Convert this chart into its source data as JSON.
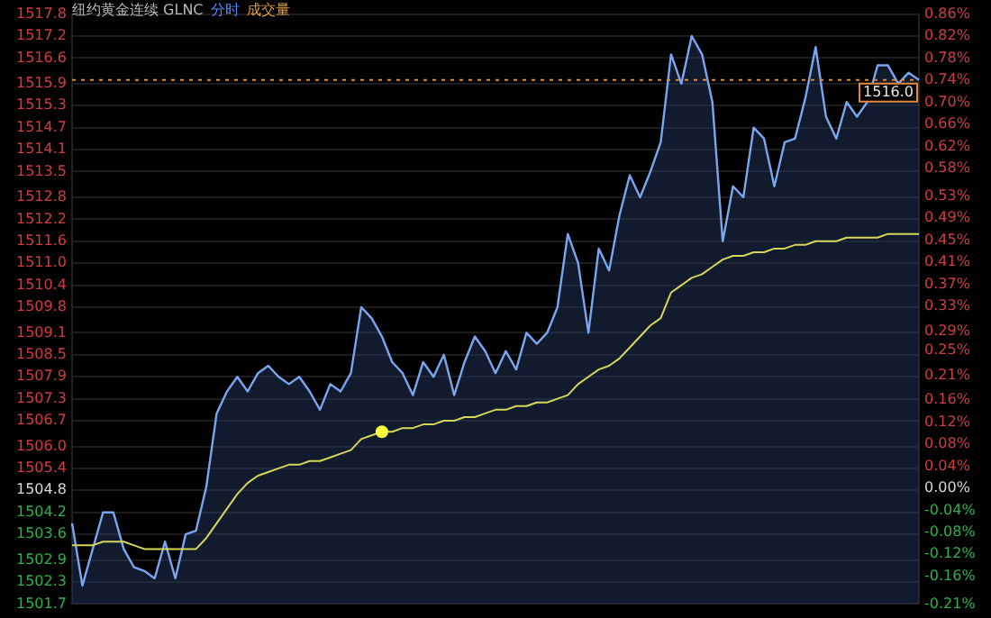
{
  "chart_data": {
    "type": "area",
    "title": "纽约黄金连续 GLNC",
    "annotations": [
      "分时",
      "成交量"
    ],
    "categories": [
      null,
      null,
      null,
      null,
      null,
      null,
      null,
      null,
      null,
      null,
      null,
      null,
      null,
      null,
      null,
      null,
      null,
      null,
      null,
      null,
      null,
      null,
      null,
      null,
      null,
      null,
      null,
      null,
      null,
      null,
      null,
      null,
      null,
      null,
      null,
      null,
      null,
      null,
      null,
      null,
      null,
      null,
      null,
      null,
      null,
      null,
      null,
      null,
      null,
      null,
      null,
      null,
      null,
      null,
      null,
      null,
      null,
      null,
      null,
      null,
      null,
      null,
      null,
      null,
      null,
      null,
      null,
      null,
      null,
      null,
      null,
      null,
      null,
      null,
      null,
      null,
      null,
      null,
      null,
      null,
      null,
      null,
      null
    ],
    "series": [
      {
        "type": "area",
        "color": "#7aa6f0",
        "values": [
          1503.9,
          1502.2,
          1503.2,
          1504.2,
          1504.2,
          1503.2,
          1502.7,
          1502.6,
          1502.4,
          1503.4,
          1502.4,
          1503.6,
          1503.7,
          1504.9,
          1506.9,
          1507.5,
          1507.9,
          1507.5,
          1508.0,
          1508.2,
          1507.9,
          1507.7,
          1507.9,
          1507.5,
          1507.0,
          1507.7,
          1507.5,
          1508.0,
          1509.8,
          1509.5,
          1509.0,
          1508.3,
          1508.0,
          1507.4,
          1508.3,
          1507.9,
          1508.5,
          1507.4,
          1508.3,
          1509.0,
          1508.6,
          1508.0,
          1508.6,
          1508.1,
          1509.1,
          1508.8,
          1509.1,
          1509.8,
          1511.8,
          1511.0,
          1509.1,
          1511.4,
          1510.8,
          1512.3,
          1513.4,
          1512.8,
          1513.5,
          1514.3,
          1516.7,
          1515.9,
          1517.2,
          1516.7,
          1515.4,
          1511.6,
          1513.1,
          1512.8,
          1514.7,
          1514.4,
          1513.1,
          1514.3,
          1514.4,
          1515.5,
          1516.9,
          1515.0,
          1514.4,
          1515.4,
          1515.0,
          1515.4,
          1516.4,
          1516.4,
          1515.9,
          1516.2,
          1516.0
        ]
      },
      {
        "type": "line",
        "color": "#d6d65a",
        "values": [
          1503.3,
          1503.3,
          1503.3,
          1503.4,
          1503.4,
          1503.4,
          1503.3,
          1503.2,
          1503.2,
          1503.2,
          1503.2,
          1503.2,
          1503.2,
          1503.5,
          1503.9,
          1504.3,
          1504.7,
          1505.0,
          1505.2,
          1505.3,
          1505.4,
          1505.5,
          1505.5,
          1505.6,
          1505.6,
          1505.7,
          1505.8,
          1505.9,
          1506.2,
          1506.3,
          1506.4,
          1506.4,
          1506.5,
          1506.5,
          1506.6,
          1506.6,
          1506.7,
          1506.7,
          1506.8,
          1506.8,
          1506.9,
          1507.0,
          1507.0,
          1507.1,
          1507.1,
          1507.2,
          1507.2,
          1507.3,
          1507.4,
          1507.7,
          1507.9,
          1508.1,
          1508.2,
          1508.4,
          1508.7,
          1509.0,
          1509.3,
          1509.5,
          1510.2,
          1510.4,
          1510.6,
          1510.7,
          1510.9,
          1511.1,
          1511.2,
          1511.2,
          1511.3,
          1511.3,
          1511.4,
          1511.4,
          1511.5,
          1511.5,
          1511.6,
          1511.6,
          1511.6,
          1511.7,
          1511.7,
          1511.7,
          1511.7,
          1511.8,
          1511.8,
          1511.8,
          1511.8
        ]
      },
      {
        "type": "scatter",
        "color": "#ffff40",
        "marker": "circle",
        "values": [
          null,
          null,
          null,
          null,
          null,
          null,
          null,
          null,
          null,
          null,
          null,
          null,
          null,
          null,
          null,
          null,
          null,
          null,
          null,
          null,
          null,
          null,
          null,
          null,
          null,
          null,
          null,
          null,
          null,
          null,
          1506.4,
          null,
          null,
          null,
          null,
          null,
          null,
          null,
          null,
          null,
          null,
          null,
          null,
          null,
          null,
          null,
          null,
          null,
          null,
          null,
          null,
          null,
          null,
          null,
          null,
          null,
          null,
          null,
          null,
          null,
          null,
          null,
          null,
          null,
          null,
          null,
          null,
          null,
          null,
          null,
          null,
          null,
          null,
          null,
          null,
          null,
          null,
          null,
          null,
          null,
          null,
          null,
          null
        ]
      }
    ],
    "ylim": [
      1501.7,
      1517.8
    ],
    "yticks": [
      1517.8,
      1517.2,
      1516.6,
      1515.9,
      1515.3,
      1514.7,
      1514.1,
      1513.5,
      1512.8,
      1512.2,
      1511.6,
      {
        "value": 1511.0,
        "label": "1511.0"
      },
      1510.4,
      1509.8,
      1509.1,
      1508.5,
      1507.9,
      1507.3,
      1506.7,
      {
        "value": 1506.0,
        "label": "1506.0"
      },
      1505.4,
      1504.8,
      1504.2,
      1503.6,
      1502.9,
      1502.3,
      1501.7
    ],
    "y2lim": [
      -0.21,
      0.86
    ],
    "y2ticks": [
      {
        "value": 0.86,
        "label": "0.86%"
      },
      {
        "value": 0.82,
        "label": "0.82%"
      },
      {
        "value": 0.78,
        "label": "0.78%"
      },
      {
        "value": 0.74,
        "label": "0.74%"
      },
      {
        "value": 0.7,
        "label": "0.70%"
      },
      {
        "value": 0.66,
        "label": "0.66%"
      },
      {
        "value": 0.62,
        "label": "0.62%"
      },
      {
        "value": 0.58,
        "label": "0.58%"
      },
      {
        "value": 0.53,
        "label": "0.53%"
      },
      {
        "value": 0.49,
        "label": "0.49%"
      },
      {
        "value": 0.45,
        "label": "0.45%"
      },
      {
        "value": 0.41,
        "label": "0.41%"
      },
      {
        "value": 0.37,
        "label": "0.37%"
      },
      {
        "value": 0.33,
        "label": "0.33%"
      },
      {
        "value": 0.285,
        "label": "0.29%"
      },
      {
        "value": 0.25,
        "label": "0.25%"
      },
      {
        "value": 0.205,
        "label": "0.21%"
      },
      {
        "value": 0.16,
        "label": "0.16%"
      },
      {
        "value": 0.12,
        "label": "0.12%"
      },
      {
        "value": 0.08,
        "label": "0.08%"
      },
      {
        "value": 0.04,
        "label": "0.04%"
      },
      {
        "value": 0,
        "label": "0.00%"
      },
      {
        "value": -0.04,
        "label": "-0.04%"
      },
      {
        "value": -0.08,
        "label": "-0.08%"
      },
      {
        "value": -0.12,
        "label": "-0.12%"
      },
      {
        "value": -0.16,
        "label": "-0.16%"
      },
      {
        "value": -0.21,
        "label": "-0.21%"
      }
    ],
    "ref_lines": [
      {
        "axis": "y",
        "value": 1516.0,
        "label": "1516.0",
        "color": "#e08a3a",
        "line_style": "dotted"
      }
    ],
    "grid": "y",
    "legend": false,
    "tick_labels": "y"
  }
}
